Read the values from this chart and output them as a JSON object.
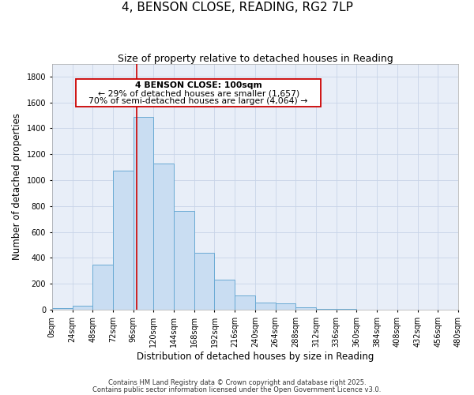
{
  "title": "4, BENSON CLOSE, READING, RG2 7LP",
  "subtitle": "Size of property relative to detached houses in Reading",
  "xlabel": "Distribution of detached houses by size in Reading",
  "ylabel": "Number of detached properties",
  "bin_edges": [
    0,
    24,
    48,
    72,
    96,
    120,
    144,
    168,
    192,
    216,
    240,
    264,
    288,
    312,
    336,
    360,
    384,
    408,
    432,
    456,
    480
  ],
  "bar_heights": [
    15,
    30,
    350,
    1075,
    1490,
    1130,
    760,
    440,
    230,
    110,
    55,
    50,
    20,
    8,
    4,
    3,
    2,
    1,
    1,
    0
  ],
  "bar_facecolor": "#c9ddf2",
  "bar_edgecolor": "#6aaad4",
  "bar_linewidth": 0.7,
  "vline_x": 100,
  "vline_color": "#cc0000",
  "vline_lw": 1.2,
  "annotation_text_line1": "4 BENSON CLOSE: 100sqm",
  "annotation_text_line2": "← 29% of detached houses are smaller (1,657)",
  "annotation_text_line3": "70% of semi-detached houses are larger (4,064) →",
  "annotation_box_facecolor": "white",
  "annotation_box_edgecolor": "#cc0000",
  "ylim": [
    0,
    1900
  ],
  "xlim": [
    0,
    480
  ],
  "yticks": [
    0,
    200,
    400,
    600,
    800,
    1000,
    1200,
    1400,
    1600,
    1800
  ],
  "xtick_labels": [
    "0sqm",
    "24sqm",
    "48sqm",
    "72sqm",
    "96sqm",
    "120sqm",
    "144sqm",
    "168sqm",
    "192sqm",
    "216sqm",
    "240sqm",
    "264sqm",
    "288sqm",
    "312sqm",
    "336sqm",
    "360sqm",
    "384sqm",
    "408sqm",
    "432sqm",
    "456sqm",
    "480sqm"
  ],
  "grid_color": "#c8d4e8",
  "bg_color": "#e8eef8",
  "footnote1": "Contains HM Land Registry data © Crown copyright and database right 2025.",
  "footnote2": "Contains public sector information licensed under the Open Government Licence v3.0.",
  "title_fontsize": 11,
  "subtitle_fontsize": 9,
  "axis_label_fontsize": 8.5,
  "tick_fontsize": 7,
  "annotation_fontsize": 7.8,
  "footnote_fontsize": 6
}
